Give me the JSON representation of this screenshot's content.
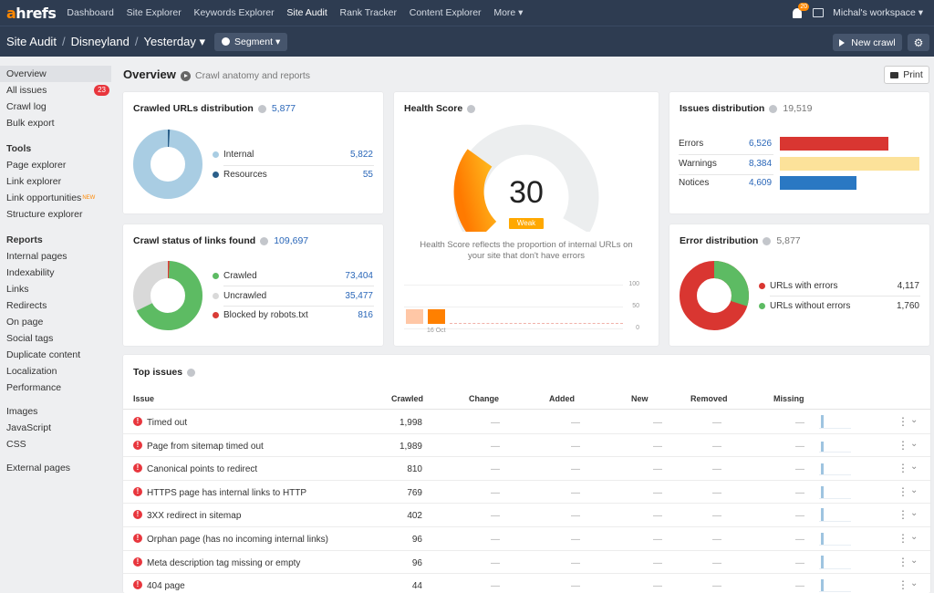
{
  "topbar": {
    "logo_a": "a",
    "logo_rest": "hrefs",
    "nav": [
      "Dashboard",
      "Site Explorer",
      "Keywords Explorer",
      "Site Audit",
      "Rank Tracker",
      "Content Explorer",
      "More ▾"
    ],
    "notif_count": "20",
    "workspace": "Michal's workspace ▾"
  },
  "subbar": {
    "crumbs": [
      "Site Audit",
      "Disneyland",
      "Yesterday ▾"
    ],
    "segment": "Segment ▾",
    "new_crawl": "New crawl"
  },
  "sidebar": {
    "overview": "Overview",
    "all_issues": "All issues",
    "all_issues_count": "23",
    "crawl_log": "Crawl log",
    "bulk_export": "Bulk export",
    "tools_head": "Tools",
    "tools": [
      "Page explorer",
      "Link explorer",
      "Link opportunities",
      "Structure explorer"
    ],
    "new_tag": "NEW",
    "reports_head": "Reports",
    "reports": [
      "Internal pages",
      "Indexability",
      "Links",
      "Redirects",
      "On page",
      "Social tags",
      "Duplicate content",
      "Localization",
      "Performance"
    ],
    "more": [
      "Images",
      "JavaScript",
      "CSS"
    ],
    "external": "External pages"
  },
  "header": {
    "title": "Overview",
    "anatomy": "Crawl anatomy and reports",
    "print": "Print"
  },
  "crawled_urls": {
    "title": "Crawled URLs distribution",
    "total": "5,877",
    "items": [
      {
        "label": "Internal",
        "value": "5,822",
        "color": "#a9cde3"
      },
      {
        "label": "Resources",
        "value": "55",
        "color": "#2a5f8a"
      }
    ]
  },
  "crawl_status": {
    "title": "Crawl status of links found",
    "total": "109,697",
    "items": [
      {
        "label": "Crawled",
        "value": "73,404",
        "color": "#5dbb63"
      },
      {
        "label": "Uncrawled",
        "value": "35,477",
        "color": "#d9d9d9"
      },
      {
        "label": "Blocked by robots.txt",
        "value": "816",
        "color": "#d93b36"
      }
    ]
  },
  "health": {
    "title": "Health Score",
    "score": "30",
    "score_fraction": 0.3,
    "grade": "Weak",
    "desc": "Health Score reflects the proportion of internal URLs on your site that don't have errors",
    "axis": [
      "100",
      "50",
      "0"
    ],
    "date": "16 Oct"
  },
  "issues_dist": {
    "title": "Issues distribution",
    "total": "19,519",
    "items": [
      {
        "label": "Errors",
        "value": "6,526",
        "color": "#d93631",
        "fraction": 0.78
      },
      {
        "label": "Warnings",
        "value": "8,384",
        "color": "#fce29a",
        "fraction": 1.0
      },
      {
        "label": "Notices",
        "value": "4,609",
        "color": "#2a78c3",
        "fraction": 0.55
      }
    ]
  },
  "error_dist": {
    "title": "Error distribution",
    "total": "5,877",
    "items": [
      {
        "label": "URLs with errors",
        "value": "4,117",
        "color": "#d93631"
      },
      {
        "label": "URLs without errors",
        "value": "1,760",
        "color": "#5dbb63"
      }
    ]
  },
  "top_issues": {
    "title": "Top issues",
    "columns": [
      "Issue",
      "Crawled",
      "Change",
      "Added",
      "New",
      "Removed",
      "Missing"
    ],
    "dash": "—",
    "rows": [
      {
        "issue": "Timed out",
        "crawled": "1,998"
      },
      {
        "issue": "Page from sitemap timed out",
        "crawled": "1,989"
      },
      {
        "issue": "Canonical points to redirect",
        "crawled": "810"
      },
      {
        "issue": "HTTPS page has internal links to HTTP",
        "crawled": "769"
      },
      {
        "issue": "3XX redirect in sitemap",
        "crawled": "402"
      },
      {
        "issue": "Orphan page (has no incoming internal links)",
        "crawled": "96"
      },
      {
        "issue": "Meta description tag missing or empty",
        "crawled": "96"
      },
      {
        "issue": "404 page",
        "crawled": "44"
      }
    ]
  }
}
